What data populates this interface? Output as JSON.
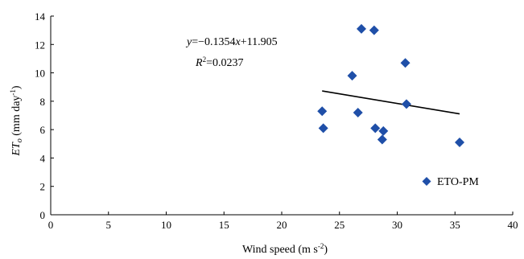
{
  "chart_data": {
    "type": "scatter",
    "xlabel": "Wind speed (m s-2)",
    "ylabel": "ETo (mm day-1)",
    "xlim": [
      0,
      40
    ],
    "ylim": [
      0,
      14
    ],
    "x_ticks": [
      0,
      5,
      10,
      15,
      20,
      25,
      30,
      35,
      40
    ],
    "y_ticks": [
      0,
      2,
      4,
      6,
      8,
      10,
      12,
      14
    ],
    "grid": false,
    "legend_position": "bottom-right",
    "series": [
      {
        "name": "ETO-PM",
        "color": "#1f4fa8",
        "marker": "diamond",
        "points": [
          {
            "x": 23.5,
            "y": 7.3
          },
          {
            "x": 23.6,
            "y": 6.1
          },
          {
            "x": 26.1,
            "y": 9.8
          },
          {
            "x": 26.6,
            "y": 7.2
          },
          {
            "x": 26.9,
            "y": 13.1
          },
          {
            "x": 28.0,
            "y": 13.0
          },
          {
            "x": 28.1,
            "y": 6.1
          },
          {
            "x": 28.7,
            "y": 5.3
          },
          {
            "x": 28.8,
            "y": 5.9
          },
          {
            "x": 30.7,
            "y": 10.7
          },
          {
            "x": 30.8,
            "y": 7.8
          },
          {
            "x": 35.4,
            "y": 5.1
          }
        ]
      }
    ],
    "trendline": {
      "slope": -0.1354,
      "intercept": 11.905,
      "x_range": [
        23.5,
        35.4
      ],
      "equation": "y=−0.1354x+11.905",
      "r_squared": "R2=0.0237"
    }
  }
}
